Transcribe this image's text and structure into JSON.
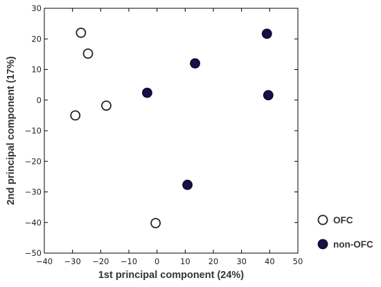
{
  "chart_data": {
    "type": "scatter",
    "title": "",
    "xlabel": "1st principal component (24%)",
    "ylabel": "2nd principal component (17%)",
    "xlim": [
      -40,
      50
    ],
    "ylim": [
      -50,
      30
    ],
    "xticks": [
      -40,
      -30,
      -20,
      -10,
      0,
      10,
      20,
      30,
      40,
      50
    ],
    "yticks": [
      30,
      20,
      10,
      0,
      -10,
      -20,
      -30,
      -40,
      -50
    ],
    "grid": false,
    "legend_position": "right",
    "series": [
      {
        "name": "OFC",
        "marker_fill": "#ffffff",
        "marker_edge": "#2a1e1e",
        "x": [
          -27,
          -24.5,
          -29,
          -18,
          -0.5
        ],
        "y": [
          22,
          15.2,
          -5,
          -1.8,
          -40.2
        ]
      },
      {
        "name": "non-OFC",
        "marker_fill": "#161248",
        "marker_edge": "#0e0b30",
        "x": [
          39,
          13.5,
          39.5,
          -3.5,
          10.8
        ],
        "y": [
          21.7,
          12,
          1.6,
          2.4,
          -27.7
        ]
      }
    ]
  }
}
